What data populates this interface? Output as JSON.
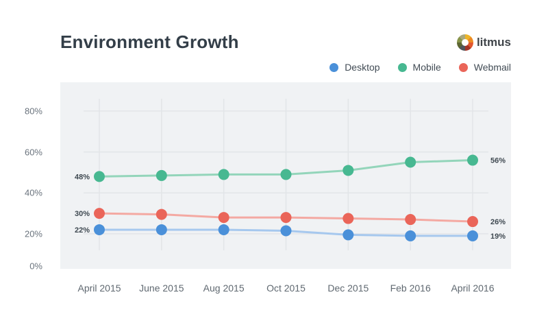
{
  "page": {
    "title": "Environment Growth"
  },
  "brand": {
    "name": "litmus"
  },
  "colors": {
    "plot_background": "#f0f2f4",
    "grid": "#e2e5e8",
    "title_text": "#333e48",
    "axis_text": "#6a737d",
    "point_label_text": "#3f4951"
  },
  "chart_data": {
    "type": "line",
    "title": "Environment Growth",
    "categories": [
      "April 2015",
      "June 2015",
      "Aug 2015",
      "Oct 2015",
      "Dec 2015",
      "Feb 2016",
      "April 2016"
    ],
    "series": [
      {
        "name": "Desktop",
        "color": "#4a90d9",
        "line_color": "#a6c8ee",
        "values": [
          22,
          22,
          22,
          21.5,
          19.5,
          19,
          19
        ],
        "start_label": "22%",
        "end_label": "19%"
      },
      {
        "name": "Mobile",
        "color": "#47b891",
        "line_color": "#93d5ba",
        "values": [
          48,
          48.5,
          49,
          49,
          51,
          55,
          56
        ],
        "start_label": "48%",
        "end_label": "56%"
      },
      {
        "name": "Webmail",
        "color": "#ea6559",
        "line_color": "#f4a9a2",
        "values": [
          30,
          29.5,
          28,
          28,
          27.5,
          27,
          26
        ],
        "start_label": "30%",
        "end_label": "26%"
      }
    ],
    "xlabel": "",
    "ylabel": "",
    "y_ticks": [
      "80%",
      "60%",
      "40%",
      "20%",
      "0%"
    ],
    "y_tick_values": [
      80,
      60,
      40,
      20,
      0
    ],
    "ylim": [
      0,
      80
    ],
    "grid": true,
    "legend_position": "top-right"
  }
}
